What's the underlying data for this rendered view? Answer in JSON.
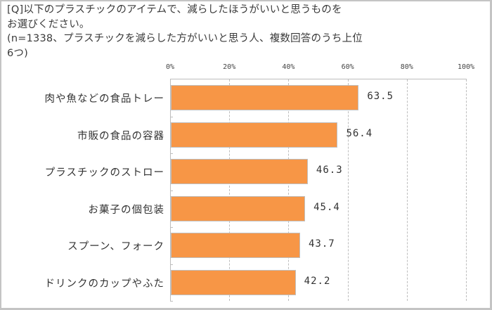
{
  "title_lines": [
    "[Q]以下のプラスチックのアイテムで、減らしたほうがいいと思うものを",
    "お選びください。",
    "(n=1338、プラスチックを減らした方がいいと思う人、複数回答のうち上位",
    "6つ)"
  ],
  "axis": {
    "ticks": [
      "0%",
      "20%",
      "40%",
      "60%",
      "80%",
      "100%"
    ]
  },
  "colors": {
    "bar": "#f79646",
    "bar_border": "#bfbfbf",
    "grid": "#bdbdbd"
  },
  "chart_data": {
    "type": "bar",
    "orientation": "horizontal",
    "title": "[Q]以下のプラスチックのアイテムで、減らしたほうがいいと思うものをお選びください。(n=1338、プラスチックを減らした方がいいと思う人、複数回答のうち上位6つ)",
    "categories": [
      "肉や魚などの食品トレー",
      "市販の食品の容器",
      "プラスチックのストロー",
      "お菓子の個包装",
      "スプーン、フォーク",
      "ドリンクのカップやふた"
    ],
    "values": [
      63.5,
      56.4,
      46.3,
      45.4,
      43.7,
      42.2
    ],
    "value_labels": [
      "63.5",
      "56.4",
      "46.3",
      "45.4",
      "43.7",
      "42.2"
    ],
    "xlabel": "",
    "ylabel": "",
    "xlim": [
      0,
      100
    ],
    "xticks": [
      "0%",
      "20%",
      "40%",
      "60%",
      "80%",
      "100%"
    ],
    "grid": "vertical dashed",
    "legend": "none"
  }
}
